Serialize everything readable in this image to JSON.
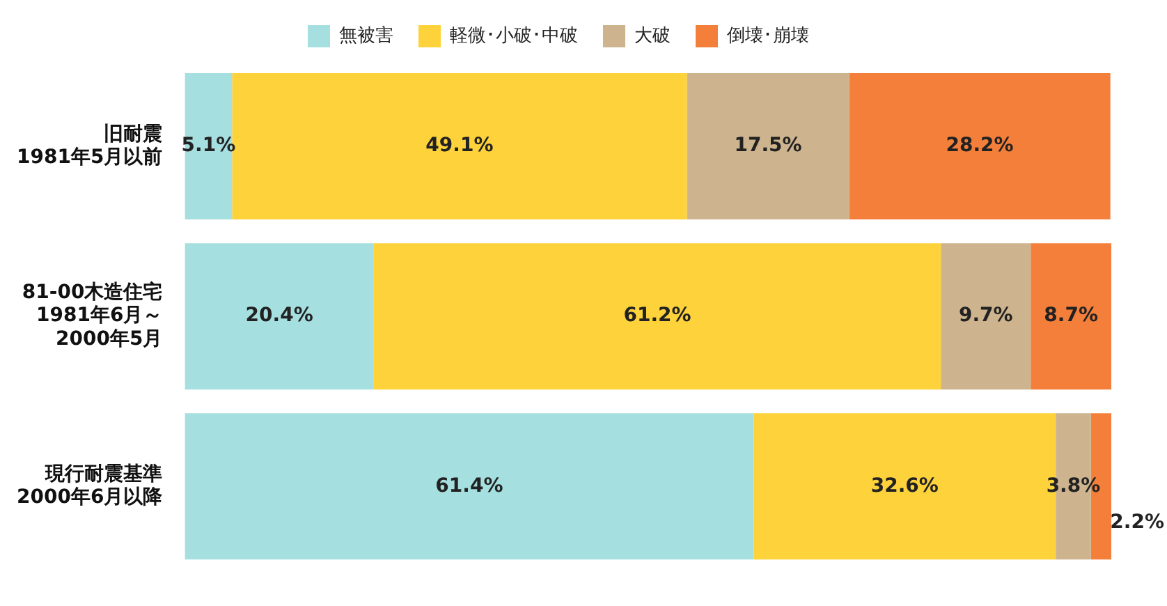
{
  "chart_data": {
    "type": "bar",
    "orientation": "horizontal",
    "stacked": true,
    "legend": "top",
    "categories": [
      "旧耐震\n1981年5月以前",
      "81-00木造住宅\n1981年6月～\n2000年5月",
      "現行耐震基準\n2000年6月以降"
    ],
    "series": [
      {
        "name": "無被害",
        "color": "#a6dfe0",
        "values": [
          5.1,
          20.4,
          61.4
        ],
        "value_labels": [
          "5.1%",
          "20.4%",
          "61.4%"
        ]
      },
      {
        "name": "軽微･小破･中破",
        "color": "#fdd23a",
        "values": [
          49.1,
          61.2,
          32.6
        ],
        "value_labels": [
          "49.1%",
          "61.2%",
          "32.6%"
        ]
      },
      {
        "name": "大破",
        "color": "#cdb48e",
        "values": [
          17.5,
          9.7,
          3.8
        ],
        "value_labels": [
          "17.5%",
          "9.7%",
          "3.8%"
        ]
      },
      {
        "name": "倒壊･崩壊",
        "color": "#f47f3a",
        "values": [
          28.2,
          8.7,
          2.2
        ],
        "value_labels": [
          "28.2%",
          "8.7%",
          "2.2%"
        ]
      }
    ]
  }
}
